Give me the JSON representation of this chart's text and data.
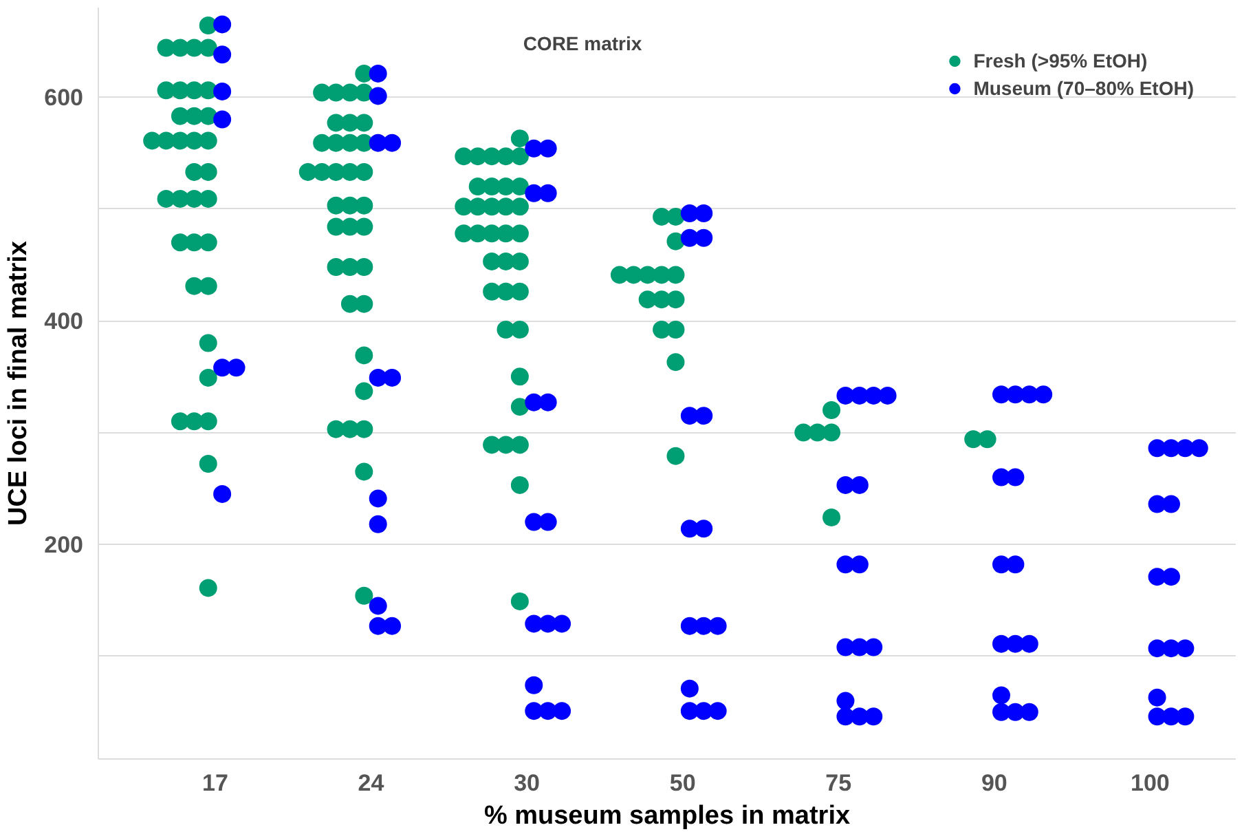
{
  "chart_data": {
    "type": "scatter",
    "categories": [
      "17",
      "24",
      "30",
      "50",
      "75",
      "90",
      "100"
    ],
    "xlabel": "% museum samples in matrix",
    "ylabel": "UCE loci in final matrix",
    "ylim": [
      8,
      680
    ],
    "yticks": [
      {
        "value": 100,
        "label": null
      },
      200,
      {
        "value": 300,
        "label": null
      },
      400,
      {
        "value": 500,
        "label": null
      },
      600
    ],
    "grid": "y",
    "legend": "top right",
    "marker": "circle",
    "annotations": [
      "CORE matrix"
    ],
    "series": [
      {
        "name": "Fresh (>95% EtOH)",
        "color": "#009e73",
        "x": [
          "17",
          "17",
          "17",
          "17",
          "17",
          "17",
          "17",
          "17",
          "17",
          "17",
          "17",
          "17",
          "17",
          "17",
          "17",
          "17",
          "17",
          "17",
          "17",
          "17",
          "17",
          "17",
          "17",
          "17",
          "17",
          "17",
          "17",
          "17",
          "17",
          "17",
          "17",
          "17",
          "17",
          "17",
          "17",
          "24",
          "24",
          "24",
          "24",
          "24",
          "24",
          "24",
          "24",
          "24",
          "24",
          "24",
          "24",
          "24",
          "24",
          "24",
          "24",
          "24",
          "24",
          "24",
          "24",
          "24",
          "24",
          "24",
          "24",
          "24",
          "24",
          "24",
          "24",
          "24",
          "24",
          "24",
          "24",
          "24",
          "24",
          "24",
          "30",
          "30",
          "30",
          "30",
          "30",
          "30",
          "30",
          "30",
          "30",
          "30",
          "30",
          "30",
          "30",
          "30",
          "30",
          "30",
          "30",
          "30",
          "30",
          "30",
          "30",
          "30",
          "30",
          "30",
          "30",
          "30",
          "30",
          "30",
          "30",
          "30",
          "30",
          "30",
          "30",
          "30",
          "30",
          "50",
          "50",
          "50",
          "50",
          "50",
          "50",
          "50",
          "50",
          "50",
          "50",
          "50",
          "50",
          "50",
          "50",
          "50",
          "75",
          "75",
          "75",
          "75",
          "75",
          "90",
          "90"
        ],
        "values": [
          664,
          644,
          644,
          644,
          644,
          606,
          606,
          606,
          606,
          583,
          583,
          583,
          561,
          561,
          561,
          561,
          561,
          533,
          533,
          509,
          509,
          509,
          509,
          470,
          470,
          470,
          431,
          431,
          380,
          349,
          310,
          310,
          310,
          272,
          161,
          621,
          604,
          604,
          604,
          604,
          577,
          577,
          577,
          559,
          559,
          559,
          559,
          533,
          533,
          533,
          533,
          533,
          503,
          503,
          503,
          484,
          484,
          484,
          448,
          448,
          448,
          415,
          415,
          369,
          337,
          303,
          303,
          303,
          265,
          154,
          563,
          547,
          547,
          547,
          547,
          547,
          520,
          520,
          520,
          520,
          502,
          502,
          502,
          502,
          502,
          478,
          478,
          478,
          478,
          478,
          453,
          453,
          453,
          426,
          426,
          426,
          392,
          392,
          350,
          323,
          289,
          289,
          289,
          253,
          149,
          493,
          493,
          471,
          441,
          441,
          441,
          441,
          441,
          419,
          419,
          419,
          392,
          392,
          363,
          279,
          320,
          300,
          300,
          300,
          224,
          294,
          294
        ]
      },
      {
        "name": "Museum (70–80% EtOH)",
        "color": "#0000ff",
        "x": [
          "17",
          "17",
          "17",
          "17",
          "17",
          "17",
          "17",
          "24",
          "24",
          "24",
          "24",
          "24",
          "24",
          "24",
          "24",
          "24",
          "24",
          "24",
          "30",
          "30",
          "30",
          "30",
          "30",
          "30",
          "30",
          "30",
          "30",
          "30",
          "30",
          "30",
          "30",
          "30",
          "30",
          "50",
          "50",
          "50",
          "50",
          "50",
          "50",
          "50",
          "50",
          "50",
          "50",
          "50",
          "50",
          "50",
          "50",
          "50",
          "75",
          "75",
          "75",
          "75",
          "75",
          "75",
          "75",
          "75",
          "75",
          "75",
          "75",
          "75",
          "75",
          "75",
          "75",
          "90",
          "90",
          "90",
          "90",
          "90",
          "90",
          "90",
          "90",
          "90",
          "90",
          "90",
          "90",
          "90",
          "90",
          "90",
          "100",
          "100",
          "100",
          "100",
          "100",
          "100",
          "100",
          "100",
          "100",
          "100",
          "100",
          "100",
          "100",
          "100",
          "100"
        ],
        "values": [
          665,
          638,
          605,
          580,
          358,
          358,
          245,
          621,
          601,
          559,
          559,
          349,
          349,
          241,
          218,
          145,
          127,
          127,
          554,
          554,
          514,
          514,
          327,
          327,
          220,
          220,
          129,
          129,
          129,
          74,
          51,
          51,
          51,
          496,
          496,
          474,
          474,
          315,
          315,
          214,
          214,
          127,
          127,
          127,
          71,
          51,
          51,
          51,
          333,
          333,
          333,
          333,
          253,
          253,
          182,
          182,
          108,
          108,
          108,
          60,
          46,
          46,
          46,
          334,
          334,
          334,
          334,
          260,
          260,
          182,
          182,
          111,
          111,
          111,
          65,
          50,
          50,
          50,
          286,
          286,
          286,
          286,
          236,
          236,
          171,
          171,
          107,
          107,
          107,
          63,
          46,
          46,
          46
        ]
      }
    ]
  }
}
